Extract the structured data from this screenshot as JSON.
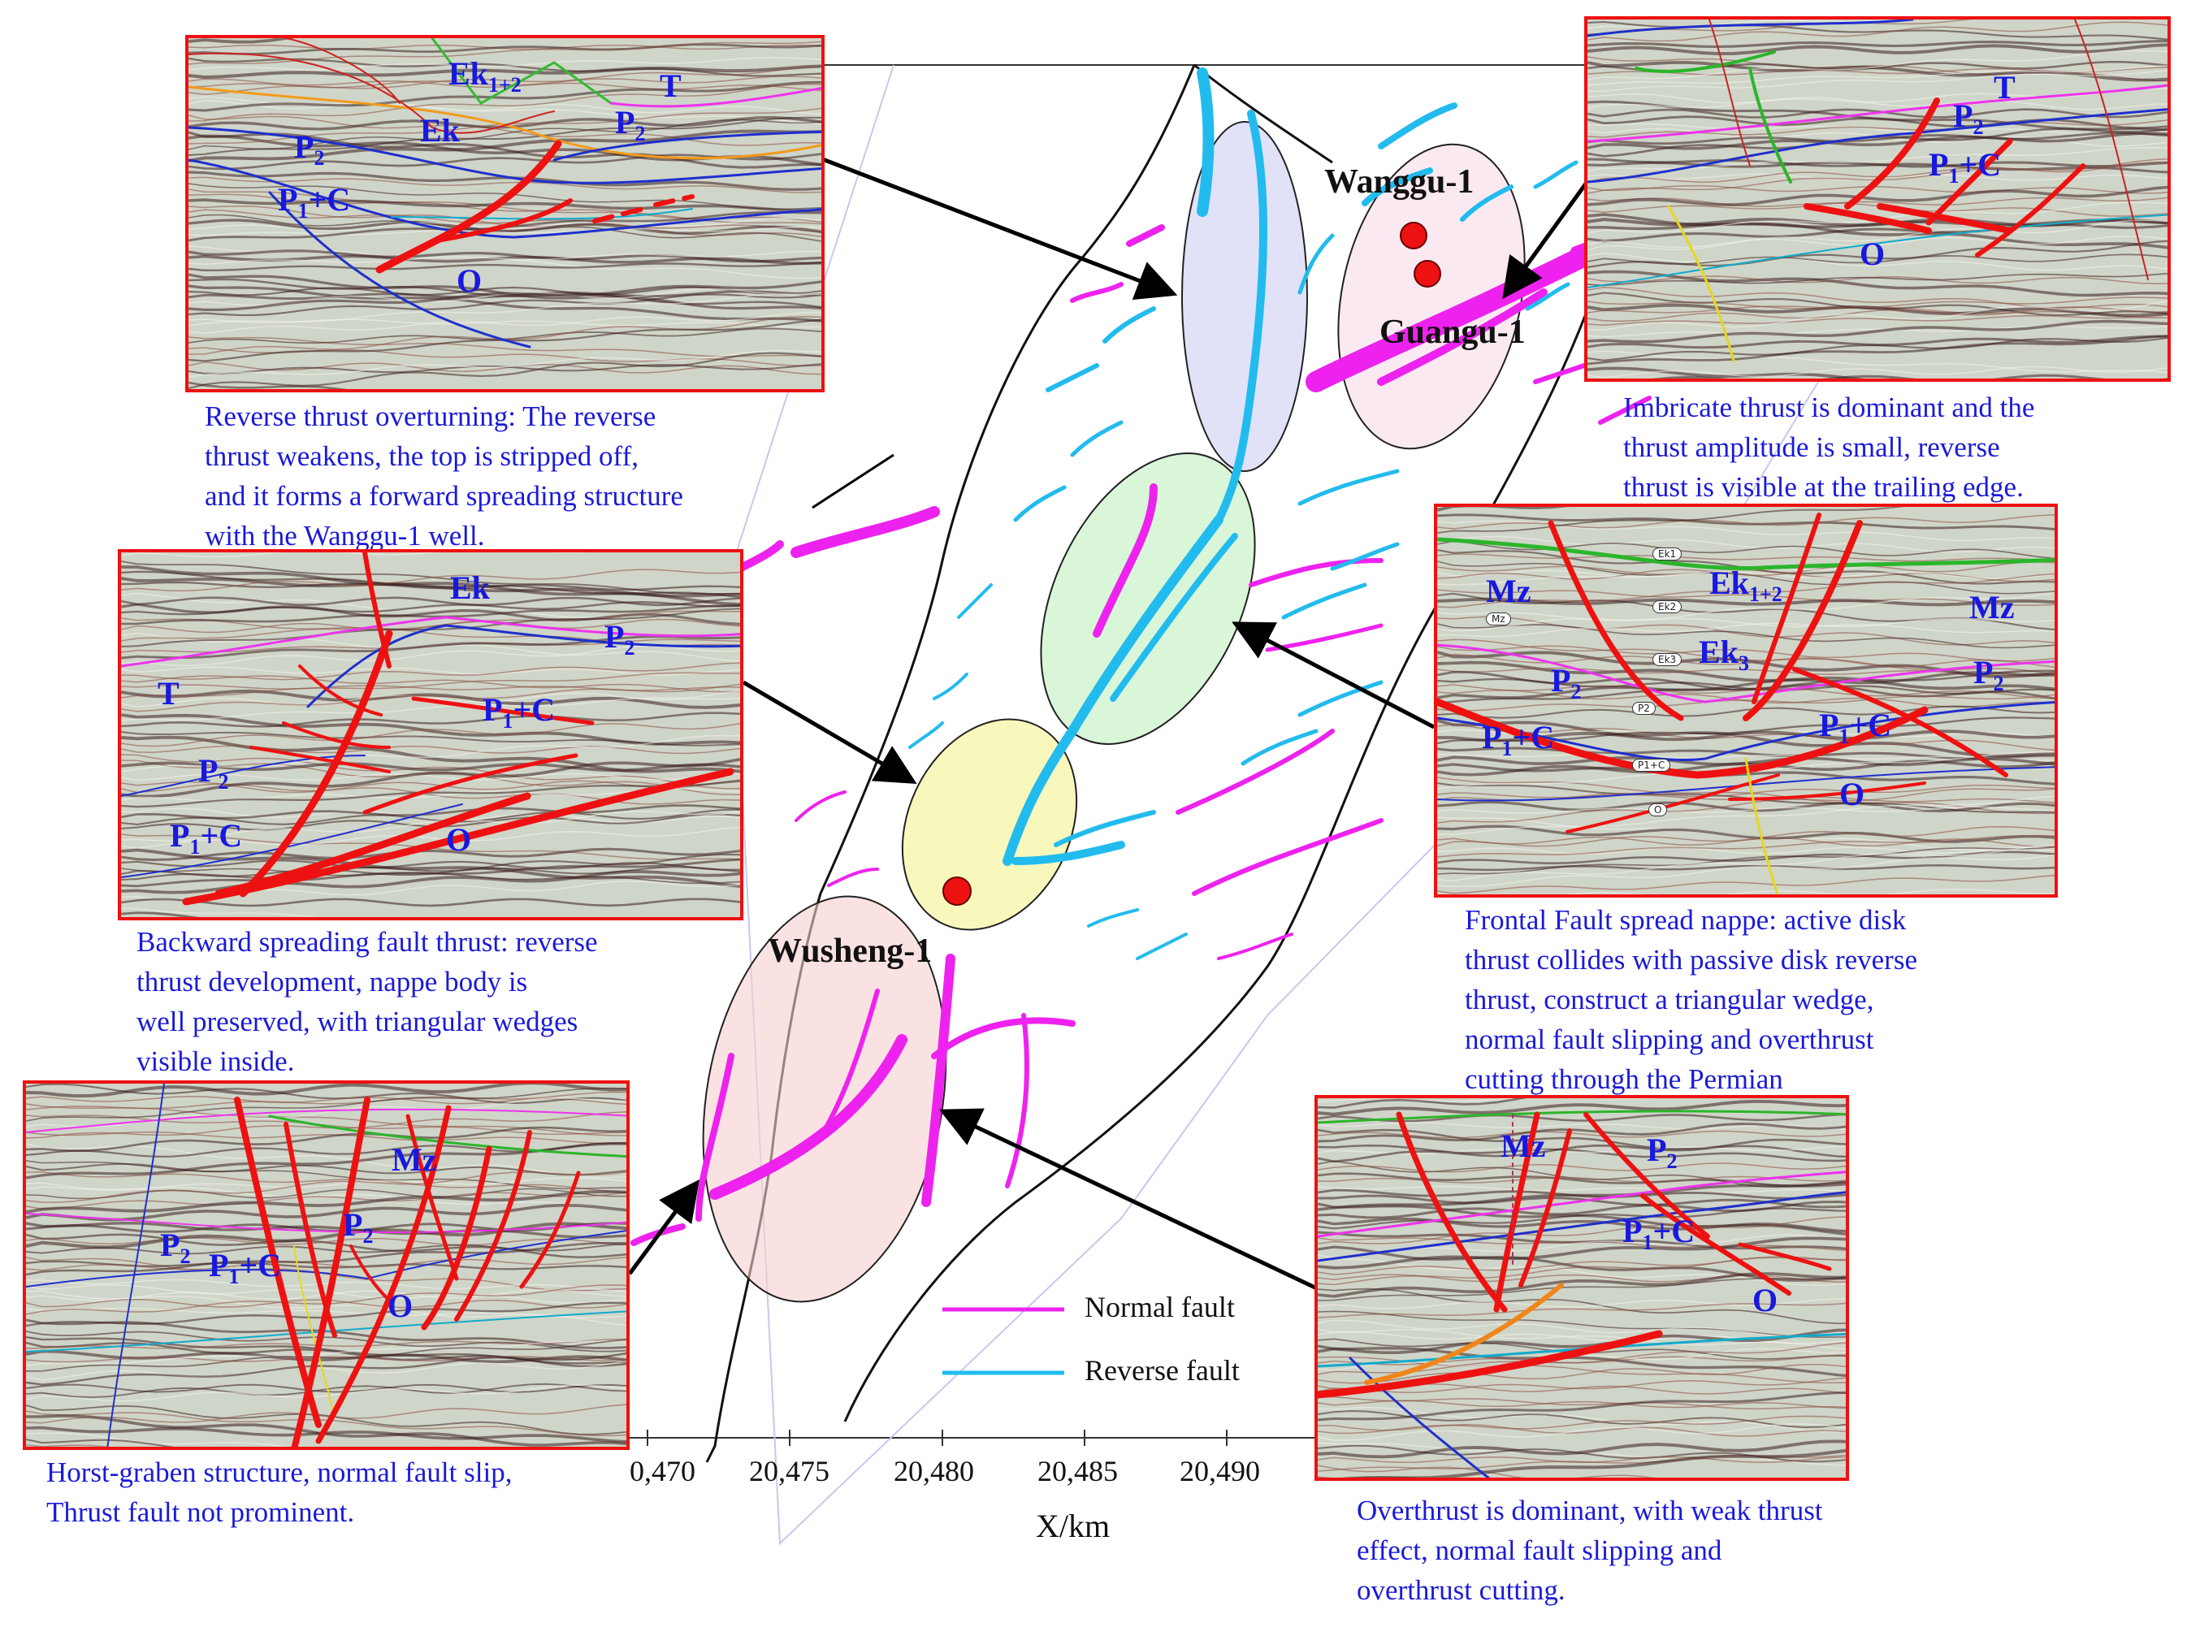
{
  "wells": [
    {
      "name": "Wanggu-1"
    },
    {
      "name": "Guangu-1"
    },
    {
      "name": "Wusheng-1"
    }
  ],
  "x_axis": {
    "label": "X/km",
    "ticks": [
      "0,470",
      "20,475",
      "20,480",
      "20,485",
      "20,490"
    ]
  },
  "legend": [
    {
      "label": "Normal fault",
      "color": "#ee22ee"
    },
    {
      "label": "Reverse fault",
      "color": "#22bbee"
    }
  ],
  "colors": {
    "panel_border": "#ee1111",
    "caption_text": "#1a1ad8",
    "well_marker": "#ee1111"
  },
  "panels": [
    {
      "id": "top-left",
      "labels": {
        "ek12": "Ek",
        "ek12_sub": "1+2",
        "ek": "Ek",
        "t": "T",
        "p2a": "P",
        "p2a_sub": "2",
        "p2b": "P",
        "p2b_sub": "2",
        "p1c": "P",
        "p1c_sub": "1",
        "p1c_tail": "+C",
        "o": "O"
      },
      "caption": [
        "Reverse thrust overturning: The reverse",
        "thrust weakens, the top is stripped off,",
        "and it forms a forward spreading structure",
        "with the Wanggu-1 well."
      ]
    },
    {
      "id": "top-right",
      "labels": {
        "t": "T",
        "p2": "P",
        "p2_sub": "2",
        "p1c": "P",
        "p1c_sub": "1",
        "p1c_tail": "+C",
        "o": "O"
      },
      "caption": [
        "Imbricate thrust is dominant and the",
        "thrust amplitude is small, reverse",
        "thrust is visible at the trailing edge."
      ]
    },
    {
      "id": "middle-left",
      "labels": {
        "ek": "Ek",
        "t": "T",
        "p2a": "P",
        "p2a_sub": "2",
        "p2b": "P",
        "p2b_sub": "2",
        "p1c_a": "P",
        "p1c_a_sub": "1",
        "p1c_a_tail": "+C",
        "p1c_b": "P",
        "p1c_b_sub": "1",
        "p1c_b_tail": "+C",
        "o": "O"
      },
      "caption": [
        "Backward spreading fault thrust: reverse",
        "thrust development, nappe body is",
        "well preserved, with triangular wedges",
        "visible inside."
      ]
    },
    {
      "id": "middle-right",
      "labels": {
        "mz_a": "Mz",
        "mz_b": "Mz",
        "ek12": "Ek",
        "ek12_sub": "1+2",
        "ek3": "Ek",
        "ek3_sub": "3",
        "p2a": "P",
        "p2a_sub": "2",
        "p2b": "P",
        "p2b_sub": "2",
        "p1c_a": "P",
        "p1c_a_sub": "1",
        "p1c_a_tail": "+C",
        "p1c_b": "P",
        "p1c_b_sub": "1",
        "p1c_b_tail": "+C",
        "o": "O"
      },
      "mini": [
        "Ek1",
        "Ek2",
        "Ek3",
        "P2",
        "P1+C",
        "O",
        "Mz"
      ],
      "caption": [
        "Frontal Fault spread nappe: active disk",
        "thrust collides with passive disk reverse",
        "thrust, construct a triangular wedge,",
        "normal fault slipping and overthrust",
        "cutting through the Permian"
      ]
    },
    {
      "id": "bottom-left",
      "labels": {
        "mz": "Mz",
        "p2a": "P",
        "p2a_sub": "2",
        "p2b": "P",
        "p2b_sub": "2",
        "p1c": "P",
        "p1c_sub": "1",
        "p1c_tail": "+C",
        "o": "O"
      },
      "caption": [
        "Horst-graben structure, normal fault slip,",
        "Thrust fault not prominent."
      ]
    },
    {
      "id": "bottom-right",
      "labels": {
        "mz": "Mz",
        "p2": "P",
        "p2_sub": "2",
        "p1c": "P",
        "p1c_sub": "1",
        "p1c_tail": "+C",
        "o": "O"
      },
      "caption": [
        "Overthrust is dominant, with weak thrust",
        "effect, normal fault slipping and",
        "overthrust cutting."
      ]
    }
  ]
}
